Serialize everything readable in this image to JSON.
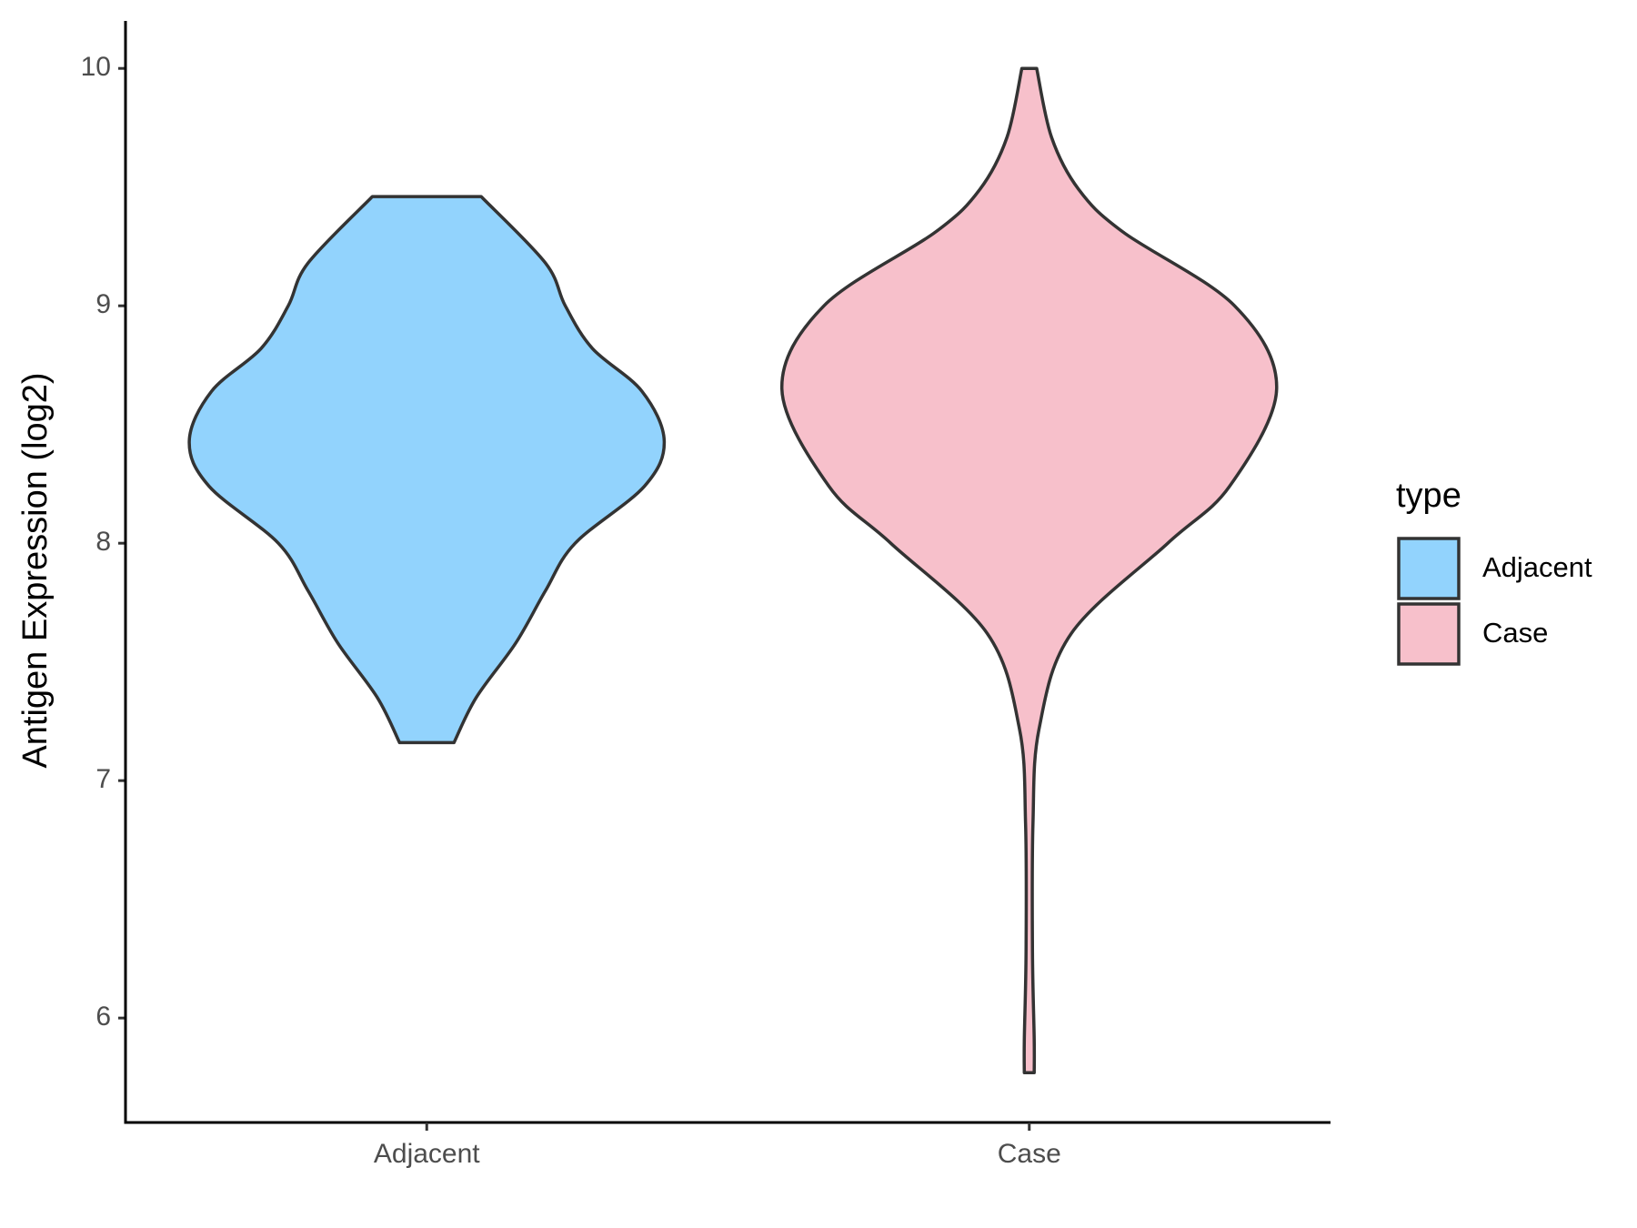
{
  "chart_data": {
    "type": "violin",
    "y_label": "Antigen Expression (log2)",
    "categories": [
      "Adjacent",
      "Case"
    ],
    "ylim": [
      5.56,
      10.2
    ],
    "yticks": [
      6,
      7,
      8,
      9,
      10
    ],
    "legend_title": "type",
    "legend": "right",
    "violins": [
      {
        "name": "Adjacent",
        "color": "#92d3fd",
        "y": [
          9.46,
          9.18,
          9.0,
          8.82,
          8.64,
          8.43,
          8.24,
          8.0,
          7.8,
          7.58,
          7.35,
          7.16
        ],
        "density": [
          0.22,
          0.48,
          0.56,
          0.67,
          0.87,
          0.96,
          0.88,
          0.6,
          0.48,
          0.36,
          0.2,
          0.11
        ]
      },
      {
        "name": "Case",
        "color": "#f7c0cb",
        "y": [
          10.0,
          9.71,
          9.49,
          9.31,
          9.0,
          8.65,
          8.24,
          8.0,
          7.62,
          7.22,
          6.82,
          6.28,
          5.91,
          5.77
        ],
        "density": [
          0.03,
          0.09,
          0.2,
          0.38,
          0.83,
          1.0,
          0.81,
          0.56,
          0.17,
          0.04,
          0.015,
          0.013,
          0.02,
          0.02
        ]
      }
    ]
  }
}
